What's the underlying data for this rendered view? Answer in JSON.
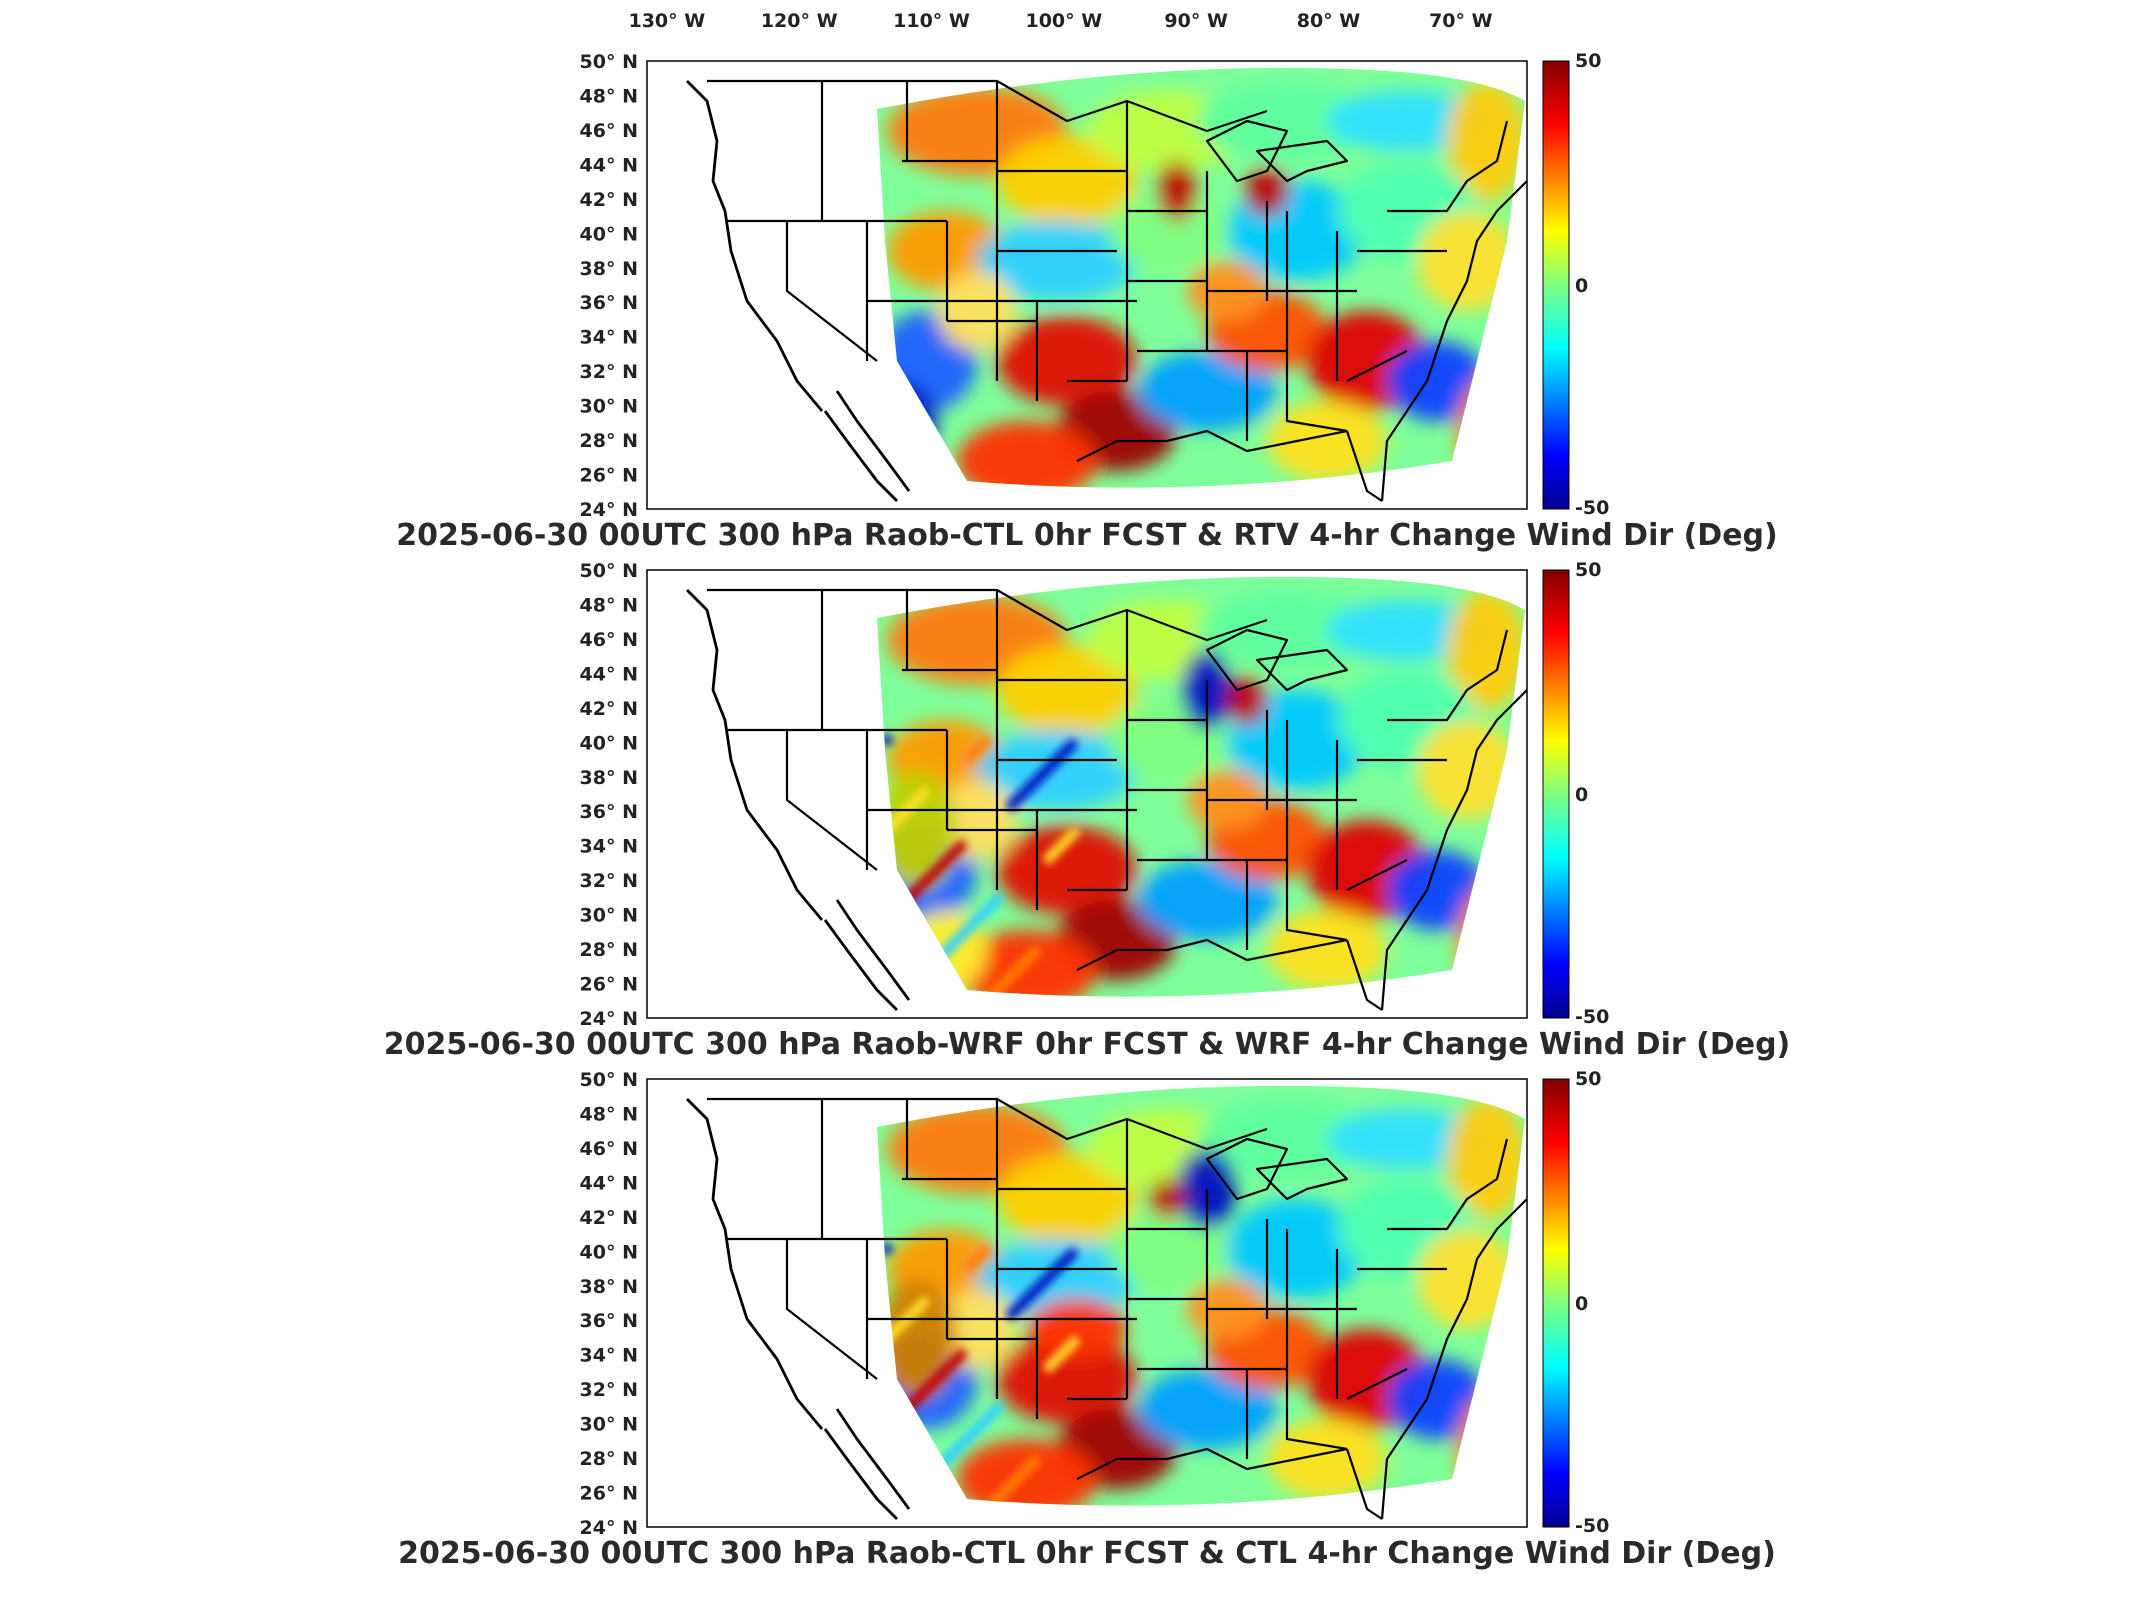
{
  "lon_labels": [
    "130° W",
    "120° W",
    "110° W",
    "100° W",
    "90° W",
    "80° W",
    "70° W"
  ],
  "lon_values": [
    -130,
    -120,
    -110,
    -100,
    -90,
    -80,
    -70
  ],
  "lat_labels": [
    "50° N",
    "48° N",
    "46° N",
    "44° N",
    "42° N",
    "40° N",
    "38° N",
    "36° N",
    "34° N",
    "32° N",
    "30° N",
    "28° N",
    "26° N",
    "24° N"
  ],
  "lat_values": [
    50,
    48,
    46,
    44,
    42,
    40,
    38,
    36,
    34,
    32,
    30,
    28,
    26,
    24
  ],
  "colorbar": {
    "max_label": "50",
    "mid_label": "0",
    "min_label": "-50",
    "range": [
      -50,
      50
    ],
    "colormap": "jet"
  },
  "panels": [
    {
      "id": "panel-rtv",
      "title": "2025-06-30 00UTC 300 hPa Raob-CTL 0hr FCST & RTV 4-hr Change Wind Dir (Deg)"
    },
    {
      "id": "panel-wrf",
      "title": "2025-06-30 00UTC 300 hPa Raob-WRF 0hr FCST & WRF 4-hr Change Wind Dir (Deg)"
    },
    {
      "id": "panel-ctl",
      "title": "2025-06-30 00UTC 300 hPa Raob-CTL 0hr FCST & CTL 4-hr Change Wind Dir (Deg)"
    }
  ],
  "colors": {
    "background": "#ffffff",
    "map_border": "#000000",
    "land_outside_domain": "#ffffff"
  }
}
